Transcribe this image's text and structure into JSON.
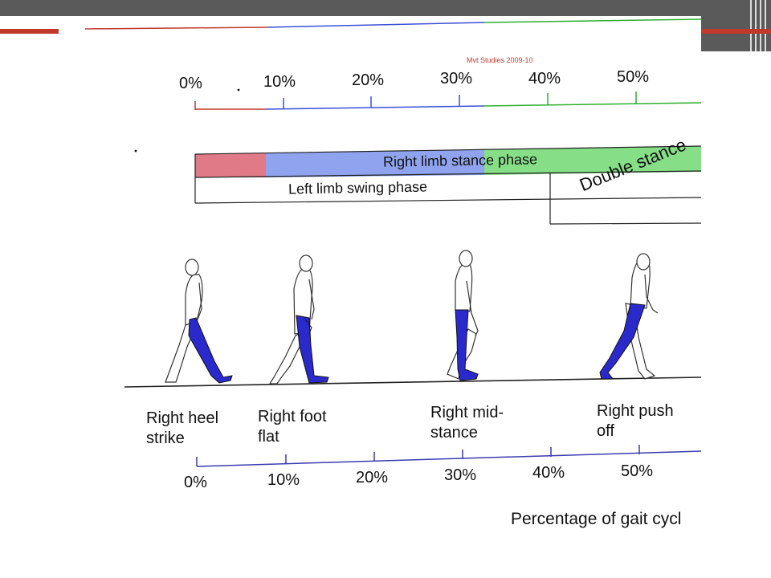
{
  "slide": {
    "caption": "Mvt Studies 2009-10",
    "top_axis_ticks": [
      "0%",
      "10%",
      "20%",
      "30%",
      "40%",
      "50%"
    ],
    "phase_bars": {
      "right_limb_stance": "Right limb stance phase",
      "left_limb_swing": "Left limb swing phase",
      "double_stance": "Double stance"
    },
    "events": [
      {
        "line1": "Right heel",
        "line2": "strike"
      },
      {
        "line1": "Right foot",
        "line2": "flat"
      },
      {
        "line1": "Right mid-",
        "line2": "stance"
      },
      {
        "line1": "Right push",
        "line2": "off"
      }
    ],
    "bottom_axis_ticks": [
      "0%",
      "10%",
      "20%",
      "30%",
      "40%",
      "50%"
    ],
    "bottom_axis_label": "Percentage of gait cycl"
  },
  "colors": {
    "theme_red": "#c0392b",
    "theme_gray": "#5a5a5a",
    "red_phase": "#e07a86",
    "blue_phase": "#8fa3ee",
    "green_phase": "#86df86",
    "limb_blue": "#2a2acc"
  }
}
